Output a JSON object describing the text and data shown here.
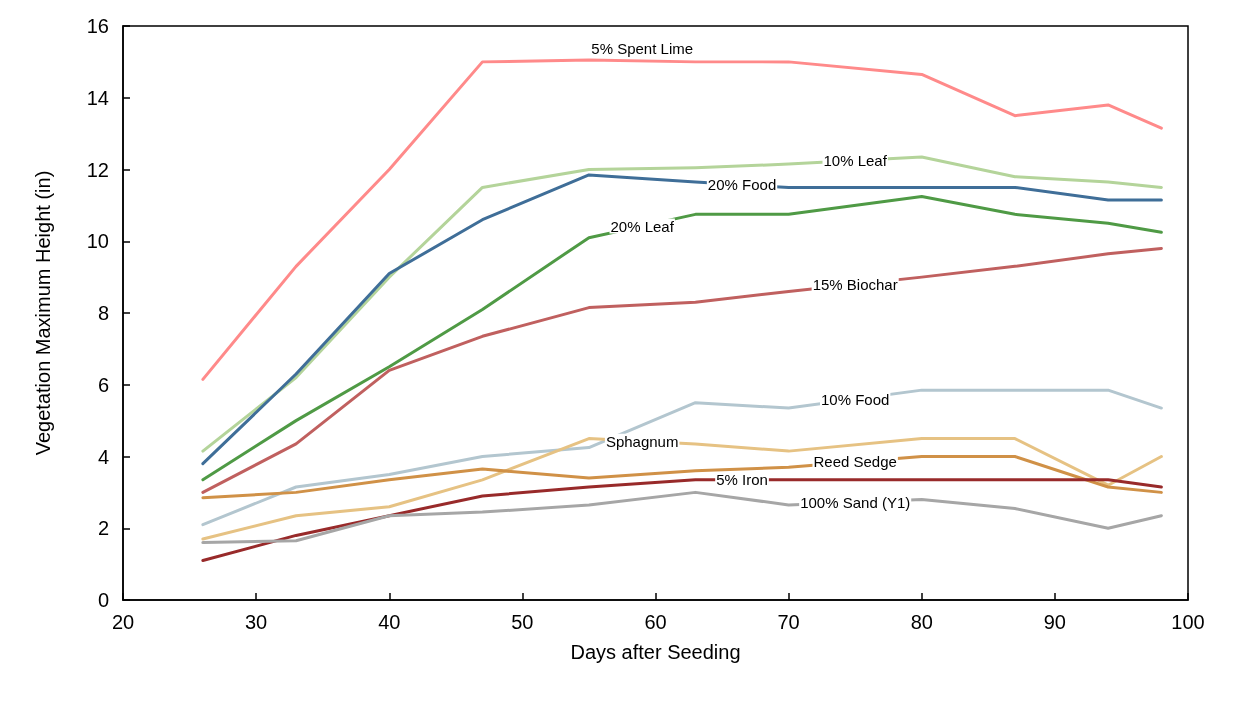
{
  "chart_data": {
    "type": "line",
    "xlabel": "Days after Seeding",
    "ylabel": "Vegetation Maximum Height (in)",
    "x": [
      26,
      33,
      40,
      47,
      55,
      63,
      70,
      80,
      87,
      94,
      98
    ],
    "xlim": [
      20,
      100
    ],
    "xticks": [
      20,
      30,
      40,
      50,
      60,
      70,
      80,
      90,
      100
    ],
    "ylim": [
      0,
      16
    ],
    "yticks": [
      0,
      2,
      4,
      6,
      8,
      10,
      12,
      14,
      16
    ],
    "grid": false,
    "legend": false,
    "marker": "none",
    "line_style": "solid",
    "series": [
      {
        "name": "5% Spent Lime",
        "color": "#ff8a8a",
        "values": [
          6.15,
          9.3,
          12,
          15,
          15.05,
          15,
          15,
          14.65,
          13.5,
          13.8,
          13.15
        ]
      },
      {
        "name": "10% Leaf",
        "color": "#b4d49a",
        "values": [
          4.15,
          6.2,
          9,
          11.5,
          12,
          12.05,
          12.15,
          12.35,
          11.8,
          11.65,
          11.5
        ]
      },
      {
        "name": "20% Food",
        "color": "#3f6e98",
        "values": [
          3.8,
          6.3,
          9.1,
          10.6,
          11.85,
          11.65,
          11.5,
          11.5,
          11.5,
          11.15,
          11.15
        ]
      },
      {
        "name": "20% Leaf",
        "color": "#4f9a45",
        "values": [
          3.35,
          5,
          6.5,
          8.1,
          10.1,
          10.75,
          10.75,
          11.25,
          10.75,
          10.5,
          10.25
        ]
      },
      {
        "name": "15% Biochar",
        "color": "#c0605f",
        "values": [
          3,
          4.35,
          6.4,
          7.35,
          8.15,
          8.3,
          8.6,
          9,
          9.3,
          9.65,
          9.8
        ]
      },
      {
        "name": "10% Food",
        "color": "#b3c6cf",
        "values": [
          2.1,
          3.15,
          3.5,
          4,
          4.25,
          5.5,
          5.35,
          5.85,
          5.85,
          5.85,
          5.35
        ]
      },
      {
        "name": "Sphagnum",
        "color": "#e6c283",
        "values": [
          1.7,
          2.35,
          2.6,
          3.35,
          4.5,
          4.35,
          4.15,
          4.5,
          4.5,
          3.2,
          4
        ]
      },
      {
        "name": "Reed Sedge",
        "color": "#d09147",
        "values": [
          2.85,
          3,
          3.35,
          3.65,
          3.4,
          3.6,
          3.7,
          4,
          4,
          3.15,
          3
        ]
      },
      {
        "name": "5% Iron",
        "color": "#982a2a",
        "values": [
          1.1,
          1.8,
          2.35,
          2.9,
          3.15,
          3.35,
          3.35,
          3.35,
          3.35,
          3.35,
          3.15
        ]
      },
      {
        "name": "100% Sand (Y1)",
        "color": "#a6a6a6",
        "values": [
          1.6,
          1.65,
          2.35,
          2.45,
          2.65,
          3,
          2.65,
          2.8,
          2.55,
          2,
          2.35
        ]
      }
    ]
  }
}
